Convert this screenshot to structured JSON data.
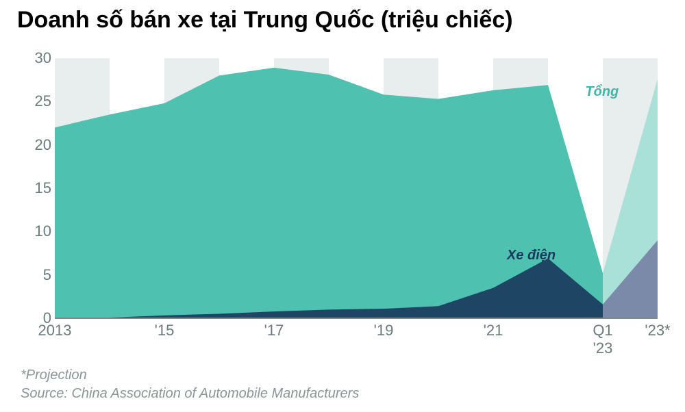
{
  "title": "Doanh số bán xe tại Trung Quốc (triệu chiếc)",
  "chart": {
    "type": "area",
    "background_color": "#ffffff",
    "grid_band_color": "#e8eded",
    "baseline_color": "#7a8a8a",
    "title_fontsize": 34,
    "axis_label_fontsize": 22,
    "axis_label_color": "#6b7a7a",
    "ylim": [
      0,
      30
    ],
    "yticks": [
      0,
      5,
      10,
      15,
      20,
      25,
      30
    ],
    "x_points": [
      "2013",
      "2014",
      "2015",
      "2016",
      "2017",
      "2018",
      "2019",
      "2020",
      "2021",
      "2022",
      "Q1 '23",
      "'23*"
    ],
    "x_tick_labels": [
      {
        "pos": 0,
        "label": "2013"
      },
      {
        "pos": 2,
        "label": "'15"
      },
      {
        "pos": 4,
        "label": "'17"
      },
      {
        "pos": 6,
        "label": "'19"
      },
      {
        "pos": 8,
        "label": "'21"
      },
      {
        "pos": 10,
        "label": "Q1\n'23"
      },
      {
        "pos": 11,
        "label": "'23*"
      }
    ],
    "grid_bands": [
      {
        "start": 0,
        "end": 1
      },
      {
        "start": 2,
        "end": 3
      },
      {
        "start": 4,
        "end": 5
      },
      {
        "start": 6,
        "end": 7
      },
      {
        "start": 8,
        "end": 9
      },
      {
        "start": 10,
        "end": 11
      }
    ],
    "series": [
      {
        "key": "total",
        "label": "Tổng",
        "label_color": "#3eb8a6",
        "label_pos": {
          "x_pct": 88,
          "y_pct": 10
        },
        "color_actual": "#4fc1b0",
        "color_projection": "#a9e0d7",
        "actual_end_index": 10,
        "values": [
          22.0,
          23.5,
          24.8,
          28.0,
          28.9,
          28.1,
          25.8,
          25.3,
          26.3,
          26.9,
          5.2,
          27.6
        ]
      },
      {
        "key": "ev",
        "label": "Xe điện",
        "label_color": "#1a3a5c",
        "label_pos": {
          "x_pct": 75,
          "y_pct": 73
        },
        "color_actual": "#1f4564",
        "color_projection": "#7b8aa8",
        "actual_end_index": 10,
        "values": [
          0.02,
          0.08,
          0.33,
          0.51,
          0.78,
          1.0,
          1.1,
          1.4,
          3.5,
          6.9,
          1.6,
          9.0
        ]
      }
    ]
  },
  "footnote_line1": "*Projection",
  "footnote_line2": "Source: China Association of Automobile Manufacturers"
}
